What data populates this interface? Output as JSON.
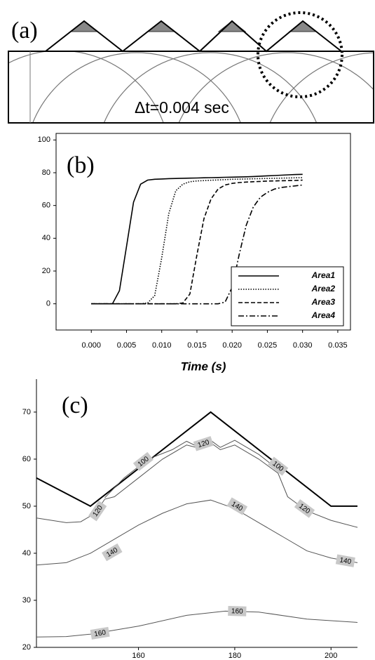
{
  "panel_a": {
    "label": "(a)",
    "annotation": "Δt=0.004 sec"
  },
  "chart_data": [
    {
      "type": "line",
      "panel_label": "(b)",
      "xlabel": "Time (s)",
      "x": [
        0,
        0.001,
        0.002,
        0.003,
        0.004,
        0.005,
        0.006,
        0.007,
        0.008,
        0.009,
        0.01,
        0.011,
        0.012,
        0.013,
        0.014,
        0.015,
        0.016,
        0.017,
        0.018,
        0.019,
        0.02,
        0.021,
        0.022,
        0.023,
        0.024,
        0.025,
        0.026,
        0.027,
        0.028,
        0.029,
        0.03
      ],
      "series": [
        {
          "name": "Area1",
          "color": "#000000",
          "dash": "solid",
          "values": [
            0,
            0,
            0,
            0,
            8,
            35,
            62,
            73,
            75.5,
            76,
            76.2,
            76.4,
            76.5,
            76.6,
            76.7,
            76.8,
            76.9,
            77,
            77.1,
            77.2,
            77.3,
            77.4,
            77.5,
            77.7,
            77.9,
            78.1,
            78.3,
            78.5,
            78.7,
            78.9,
            79
          ]
        },
        {
          "name": "Area2",
          "color": "#000000",
          "dash": "dotted",
          "values": [
            0,
            0,
            0,
            0,
            0,
            0,
            0,
            0,
            0.5,
            5,
            28,
            55,
            69,
            73,
            74.5,
            75,
            75.2,
            75.4,
            75.6,
            75.8,
            76,
            76.1,
            76.2,
            76.3,
            76.4,
            76.5,
            76.6,
            76.7,
            76.8,
            76.9,
            77
          ]
        },
        {
          "name": "Area3",
          "color": "#000000",
          "dash": "dashed",
          "values": [
            0,
            0,
            0,
            0,
            0,
            0,
            0,
            0,
            0,
            0,
            0,
            0,
            0,
            0.5,
            6,
            30,
            52,
            64,
            70,
            72.5,
            73.5,
            74,
            74.3,
            74.5,
            74.7,
            74.9,
            75,
            75.1,
            75.2,
            75.3,
            75.5
          ]
        },
        {
          "name": "Area4",
          "color": "#000000",
          "dash": "dashdot",
          "values": [
            0,
            0,
            0,
            0,
            0,
            0,
            0,
            0,
            0,
            0,
            0,
            0,
            0,
            0,
            0,
            0,
            0,
            0,
            0,
            1,
            10,
            30,
            48,
            59,
            65,
            68,
            70,
            71,
            71.5,
            72,
            72.5
          ]
        }
      ],
      "xlim": [
        -0.005,
        0.0368
      ],
      "xticks": [
        {
          "value": 0,
          "label": "0.000"
        },
        {
          "value": 0.005,
          "label": "0.005"
        },
        {
          "value": 0.01,
          "label": "0.010"
        },
        {
          "value": 0.015,
          "label": "0.015"
        },
        {
          "value": 0.02,
          "label": "0.020"
        },
        {
          "value": 0.025,
          "label": "0.025"
        },
        {
          "value": 0.03,
          "label": "0.030"
        },
        {
          "value": 0.035,
          "label": "0.035"
        }
      ],
      "ylim": [
        -16,
        104
      ],
      "yticks": [
        0,
        20,
        40,
        60,
        80,
        100
      ],
      "legend": "lower-right"
    },
    {
      "type": "contour",
      "panel_label": "(c)",
      "xlim": [
        138.8,
        205.5
      ],
      "xticks": [
        160,
        180,
        200
      ],
      "ylim": [
        20,
        77
      ],
      "yticks": [
        20,
        30,
        40,
        50,
        60,
        70
      ],
      "series": [
        {
          "color": "#000000",
          "line_width": 2,
          "x": [
            138.8,
            150,
            175,
            200,
            205.5
          ],
          "values": [
            56,
            50,
            70,
            50,
            50
          ]
        },
        {
          "color": "#555555",
          "line_width": 1,
          "x": [
            153,
            157,
            162,
            167,
            170,
            172,
            175,
            177,
            180,
            185,
            190
          ],
          "values": [
            51.8,
            56,
            60,
            62,
            63.8,
            62.8,
            64,
            62.5,
            64,
            61,
            57
          ],
          "labels": [
            {
              "text": "100",
              "x": 161,
              "y": 59.5
            },
            {
              "text": "100",
              "x": 189,
              "y": 58.5
            }
          ]
        },
        {
          "color": "#555555",
          "line_width": 1,
          "x": [
            138.8,
            145,
            148,
            151,
            153,
            155,
            160,
            165,
            170,
            172,
            175,
            177,
            180,
            185,
            189,
            191,
            195,
            200,
            205.5
          ],
          "values": [
            47.5,
            46.5,
            46.7,
            48.5,
            51.5,
            52,
            56,
            60,
            63,
            62.5,
            63.5,
            62,
            63,
            60,
            57,
            52,
            49,
            47,
            45.5
          ],
          "labels": [
            {
              "text": "120",
              "x": 151.5,
              "y": 49
            },
            {
              "text": "120",
              "x": 173.5,
              "y": 63.3
            },
            {
              "text": "120",
              "x": 194.5,
              "y": 49.5
            }
          ]
        },
        {
          "color": "#555555",
          "line_width": 1,
          "x": [
            138.8,
            145,
            150,
            155,
            160,
            165,
            170,
            175,
            180,
            185,
            190,
            195,
            200,
            205.5
          ],
          "values": [
            37.5,
            38,
            40,
            43,
            46,
            48.5,
            50.5,
            51.3,
            49.5,
            46.5,
            43.5,
            40.5,
            39,
            38
          ],
          "labels": [
            {
              "text": "140",
              "x": 154.5,
              "y": 40.2
            },
            {
              "text": "140",
              "x": 180.5,
              "y": 50
            },
            {
              "text": "140",
              "x": 203,
              "y": 38.4
            }
          ]
        },
        {
          "color": "#555555",
          "line_width": 1,
          "x": [
            138.8,
            145,
            150,
            160,
            170,
            178,
            185,
            195,
            205.5
          ],
          "values": [
            22.2,
            22.3,
            22.8,
            24.5,
            26.8,
            27.7,
            27.5,
            26,
            25.3
          ],
          "labels": [
            {
              "text": "160",
              "x": 152,
              "y": 23
            },
            {
              "text": "160",
              "x": 180.5,
              "y": 27.7
            }
          ]
        }
      ]
    }
  ]
}
